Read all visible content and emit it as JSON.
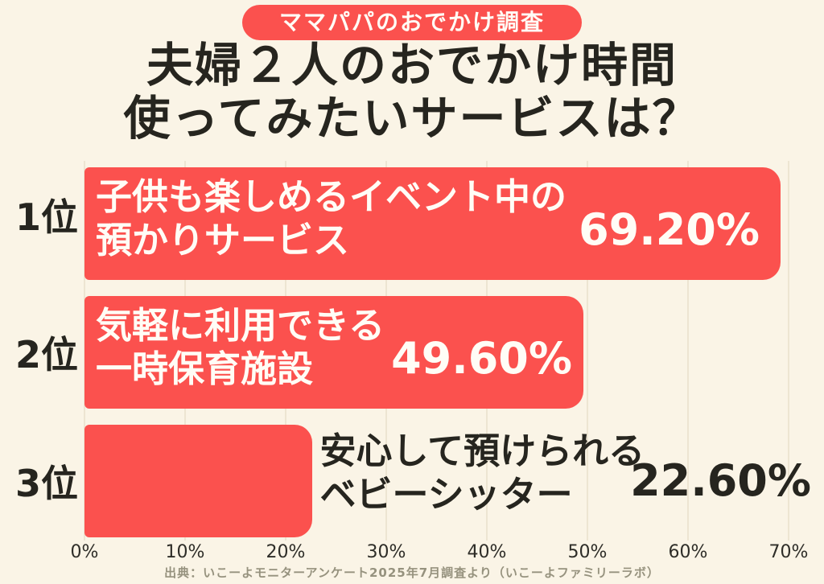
{
  "badge": {
    "label": "ママパパのおでかけ調査"
  },
  "title": {
    "line1": "夫婦２人のおでかけ時間",
    "line2": "使ってみたいサービスは？"
  },
  "chart_data": {
    "type": "bar",
    "orientation": "horizontal",
    "title": "夫婦２人のおでかけ時間 使ってみたいサービスは？",
    "categories": [
      "子供も楽しめるイベント中の預かりサービス",
      "気軽に利用できる一時保育施設",
      "安心して預けられるベビーシッター"
    ],
    "values": [
      69.2,
      49.6,
      22.6
    ],
    "value_labels": [
      "69.20%",
      "49.60%",
      "22.60%"
    ],
    "x_ticks": [
      "0%",
      "10%",
      "20%",
      "30%",
      "40%",
      "50%",
      "60%",
      "70%"
    ],
    "xlim": [
      0,
      70
    ],
    "grid": true,
    "legend": "none",
    "bar_color": "#FB514E",
    "rows": [
      {
        "rank": "1位",
        "label_line1": "子供も楽しめるイベント中の",
        "label_line2": "預かりサービス",
        "value": 69.2,
        "value_label": "69.20%",
        "label_position": "inside"
      },
      {
        "rank": "2位",
        "label_line1": "気軽に利用できる",
        "label_line2": "一時保育施設",
        "value": 49.6,
        "value_label": "49.60%",
        "label_position": "inside"
      },
      {
        "rank": "3位",
        "label_line1": "安心して預けられる",
        "label_line2": "ベビーシッター",
        "value": 22.6,
        "value_label": "22.60%",
        "label_position": "outside"
      }
    ]
  },
  "footer": {
    "source": "出典：いこーよモニターアンケート2025年7月調査より（いこーよファミリーラボ）"
  },
  "colors": {
    "background": "#FAF4E6",
    "accent_red": "#FB514E",
    "text_dark": "#26251F",
    "bar_text": "#FFFDF6",
    "gridline": "#EDE5D2",
    "footer_text": "#96927E"
  }
}
